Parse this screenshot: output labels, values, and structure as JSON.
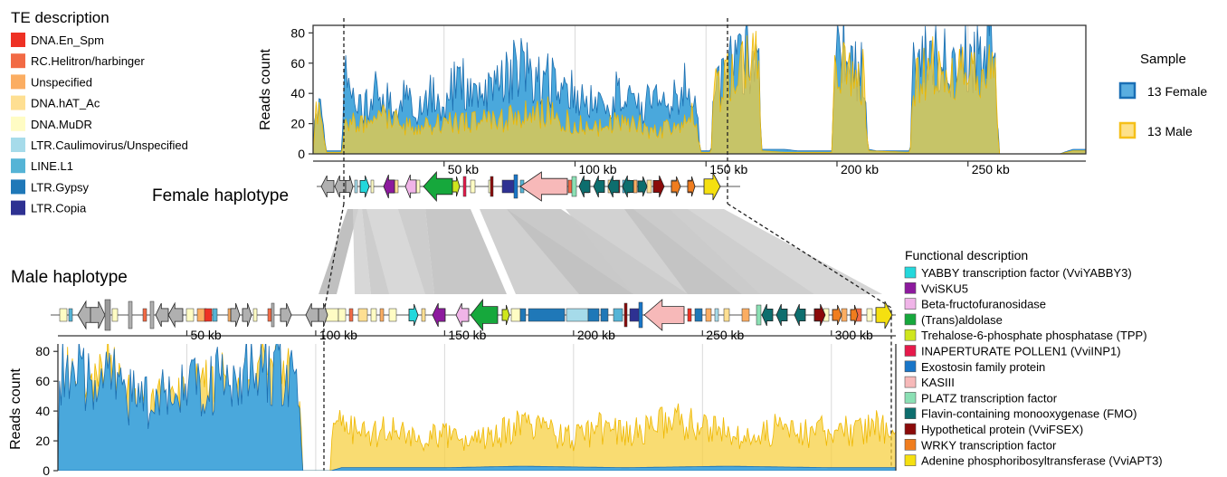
{
  "te_legend": {
    "title": "TE description",
    "items": [
      {
        "label": "DNA.En_Spm",
        "color": "#ee3124"
      },
      {
        "label": "RC.Helitron/harbinger",
        "color": "#f26a45"
      },
      {
        "label": "Unspecified",
        "color": "#fbad62"
      },
      {
        "label": "DNA.hAT_Ac",
        "color": "#fedf92"
      },
      {
        "label": "DNA.MuDR",
        "color": "#fffcc4"
      },
      {
        "label": "LTR.Caulimovirus/Unspecified",
        "color": "#a6dbea"
      },
      {
        "label": "LINE.L1",
        "color": "#55b4d6"
      },
      {
        "label": "LTR.Gypsy",
        "color": "#1f78b8"
      },
      {
        "label": "LTR.Copia",
        "color": "#2e3192"
      }
    ]
  },
  "func_legend": {
    "title": "Functional description",
    "items": [
      {
        "label": "YABBY transcription factor (VviYABBY3)",
        "color": "#24d8dc"
      },
      {
        "label": "VviSKU5",
        "color": "#8d1a9e"
      },
      {
        "label": "Beta-fructofuranosidase",
        "color": "#f0b4e8"
      },
      {
        "label": "(Trans)aldolase",
        "color": "#16a83c"
      },
      {
        "label": "Trehalose-6-phosphate phosphatase (TPP)",
        "color": "#cfe61e"
      },
      {
        "label": "INAPERTURATE POLLEN1 (VviINP1)",
        "color": "#e6194b"
      },
      {
        "label": "Exostosin family protein",
        "color": "#1976c8"
      },
      {
        "label": "KASIII",
        "color": "#f7b9b9"
      },
      {
        "label": "PLATZ transcription factor",
        "color": "#8be0b4"
      },
      {
        "label": "Flavin-containing monooxygenase (FMO)",
        "color": "#0d6e6e"
      },
      {
        "label": "Hypothetical protein (VviFSEX)",
        "color": "#8b0a0a"
      },
      {
        "label": "WRKY transcription factor",
        "color": "#f07d1e"
      },
      {
        "label": "Adenine phosphoribosyltransferase (VviAPT3)",
        "color": "#f5e010"
      }
    ]
  },
  "sample_legend": {
    "title": "Sample",
    "items": [
      {
        "label": "13 Female",
        "fill": "#5aaee0",
        "stroke": "#1a6fb5"
      },
      {
        "label": "13 Male",
        "fill": "#fde18a",
        "stroke": "#f5c01a"
      }
    ]
  },
  "haplotypes": {
    "female": "Female haplotype",
    "male": "Male haplotype"
  },
  "chart_data": [
    {
      "type": "area",
      "ylabel": "Reads count",
      "ylim": [
        0,
        85
      ],
      "yticks": [
        0,
        20,
        40,
        60,
        80
      ],
      "xlim": [
        0,
        295
      ],
      "xticks": [
        {
          "v": 50,
          "label": "50 kb"
        },
        {
          "v": 100,
          "label": "100 kb"
        },
        {
          "v": 150,
          "label": "150 kb"
        },
        {
          "v": 200,
          "label": "200 kb"
        },
        {
          "v": 250,
          "label": "250 kb"
        }
      ],
      "dashed_at_kb": [
        10,
        148
      ],
      "series": [
        {
          "name": "13 Female",
          "profile": [
            [
              0,
              0
            ],
            [
              1,
              35
            ],
            [
              3,
              25
            ],
            [
              5,
              2
            ],
            [
              11,
              2
            ],
            [
              12,
              60
            ],
            [
              14,
              35
            ],
            [
              20,
              30
            ],
            [
              25,
              45
            ],
            [
              30,
              35
            ],
            [
              35,
              40
            ],
            [
              40,
              25
            ],
            [
              45,
              40
            ],
            [
              50,
              30
            ],
            [
              55,
              50
            ],
            [
              60,
              40
            ],
            [
              65,
              35
            ],
            [
              70,
              45
            ],
            [
              75,
              55
            ],
            [
              80,
              60
            ],
            [
              85,
              45
            ],
            [
              90,
              50
            ],
            [
              95,
              40
            ],
            [
              100,
              42
            ],
            [
              105,
              35
            ],
            [
              110,
              40
            ],
            [
              115,
              38
            ],
            [
              120,
              45
            ],
            [
              125,
              30
            ],
            [
              130,
              35
            ],
            [
              135,
              38
            ],
            [
              140,
              40
            ],
            [
              145,
              50
            ],
            [
              148,
              2
            ],
            [
              152,
              2
            ],
            [
              153,
              55
            ],
            [
              155,
              45
            ],
            [
              160,
              60
            ],
            [
              165,
              65
            ],
            [
              170,
              62
            ],
            [
              171,
              3
            ],
            [
              180,
              3
            ],
            [
              185,
              2
            ],
            [
              198,
              2
            ],
            [
              199,
              55
            ],
            [
              202,
              75
            ],
            [
              205,
              60
            ],
            [
              210,
              55
            ],
            [
              212,
              3
            ],
            [
              215,
              2
            ],
            [
              228,
              2
            ],
            [
              229,
              55
            ],
            [
              235,
              62
            ],
            [
              240,
              68
            ],
            [
              245,
              55
            ],
            [
              250,
              65
            ],
            [
              255,
              62
            ],
            [
              258,
              78
            ],
            [
              260,
              60
            ],
            [
              262,
              0
            ],
            [
              285,
              0
            ],
            [
              290,
              3
            ],
            [
              295,
              3
            ]
          ]
        },
        {
          "name": "13 Male",
          "profile": [
            [
              0,
              0
            ],
            [
              1,
              30
            ],
            [
              3,
              22
            ],
            [
              5,
              1
            ],
            [
              11,
              1
            ],
            [
              12,
              20
            ],
            [
              20,
              20
            ],
            [
              30,
              25
            ],
            [
              40,
              15
            ],
            [
              50,
              22
            ],
            [
              60,
              20
            ],
            [
              70,
              22
            ],
            [
              80,
              25
            ],
            [
              90,
              28
            ],
            [
              100,
              20
            ],
            [
              110,
              18
            ],
            [
              120,
              22
            ],
            [
              130,
              15
            ],
            [
              140,
              18
            ],
            [
              145,
              25
            ],
            [
              148,
              1
            ],
            [
              152,
              1
            ],
            [
              153,
              55
            ],
            [
              155,
              42
            ],
            [
              160,
              58
            ],
            [
              165,
              60
            ],
            [
              170,
              58
            ],
            [
              171,
              2
            ],
            [
              180,
              1
            ],
            [
              198,
              1
            ],
            [
              199,
              50
            ],
            [
              202,
              60
            ],
            [
              205,
              55
            ],
            [
              210,
              50
            ],
            [
              212,
              2
            ],
            [
              228,
              1
            ],
            [
              229,
              50
            ],
            [
              235,
              58
            ],
            [
              240,
              62
            ],
            [
              245,
              52
            ],
            [
              250,
              60
            ],
            [
              255,
              55
            ],
            [
              258,
              70
            ],
            [
              260,
              58
            ],
            [
              262,
              0
            ],
            [
              285,
              0
            ],
            [
              290,
              2
            ],
            [
              295,
              2
            ]
          ]
        }
      ]
    },
    {
      "type": "area",
      "ylabel": "Reads count",
      "ylim": [
        0,
        85
      ],
      "yticks": [
        0,
        20,
        40,
        60,
        80
      ],
      "xlim": [
        0,
        325
      ],
      "xticks": [
        {
          "v": 50,
          "label": "50 kb"
        },
        {
          "v": 100,
          "label": "100 kb"
        },
        {
          "v": 150,
          "label": "150 kb"
        },
        {
          "v": 200,
          "label": "200 kb"
        },
        {
          "v": 250,
          "label": "250 kb"
        },
        {
          "v": 300,
          "label": "300 kb"
        }
      ],
      "dashed_at_kb": [
        106
      ],
      "series": [
        {
          "name": "13 Female",
          "profile": [
            [
              0,
              0
            ],
            [
              1,
              70
            ],
            [
              5,
              65
            ],
            [
              10,
              60
            ],
            [
              15,
              55
            ],
            [
              20,
              70
            ],
            [
              25,
              50
            ],
            [
              30,
              48
            ],
            [
              35,
              45
            ],
            [
              40,
              50
            ],
            [
              45,
              48
            ],
            [
              50,
              55
            ],
            [
              55,
              60
            ],
            [
              60,
              58
            ],
            [
              65,
              62
            ],
            [
              70,
              60
            ],
            [
              75,
              68
            ],
            [
              80,
              65
            ],
            [
              85,
              70
            ],
            [
              90,
              62
            ],
            [
              94,
              45
            ],
            [
              95,
              0
            ],
            [
              106,
              0
            ],
            [
              110,
              2
            ],
            [
              150,
              2
            ],
            [
              180,
              3
            ],
            [
              220,
              2
            ],
            [
              260,
              3
            ],
            [
              300,
              2
            ],
            [
              325,
              2
            ]
          ]
        },
        {
          "name": "13 Male",
          "profile": [
            [
              0,
              0
            ],
            [
              1,
              68
            ],
            [
              5,
              62
            ],
            [
              10,
              58
            ],
            [
              15,
              52
            ],
            [
              20,
              68
            ],
            [
              25,
              48
            ],
            [
              30,
              46
            ],
            [
              35,
              42
            ],
            [
              40,
              48
            ],
            [
              45,
              46
            ],
            [
              50,
              52
            ],
            [
              55,
              58
            ],
            [
              60,
              55
            ],
            [
              65,
              60
            ],
            [
              70,
              58
            ],
            [
              75,
              66
            ],
            [
              80,
              62
            ],
            [
              85,
              68
            ],
            [
              90,
              60
            ],
            [
              94,
              42
            ],
            [
              95,
              0
            ],
            [
              106,
              0
            ],
            [
              106.5,
              35
            ],
            [
              110,
              28
            ],
            [
              120,
              25
            ],
            [
              130,
              28
            ],
            [
              140,
              20
            ],
            [
              150,
              25
            ],
            [
              160,
              18
            ],
            [
              170,
              24
            ],
            [
              180,
              30
            ],
            [
              190,
              25
            ],
            [
              200,
              22
            ],
            [
              210,
              28
            ],
            [
              220,
              24
            ],
            [
              230,
              30
            ],
            [
              240,
              35
            ],
            [
              250,
              28
            ],
            [
              260,
              25
            ],
            [
              270,
              22
            ],
            [
              280,
              30
            ],
            [
              290,
              25
            ],
            [
              300,
              28
            ],
            [
              310,
              26
            ],
            [
              320,
              30
            ],
            [
              325,
              22
            ]
          ]
        }
      ]
    }
  ]
}
